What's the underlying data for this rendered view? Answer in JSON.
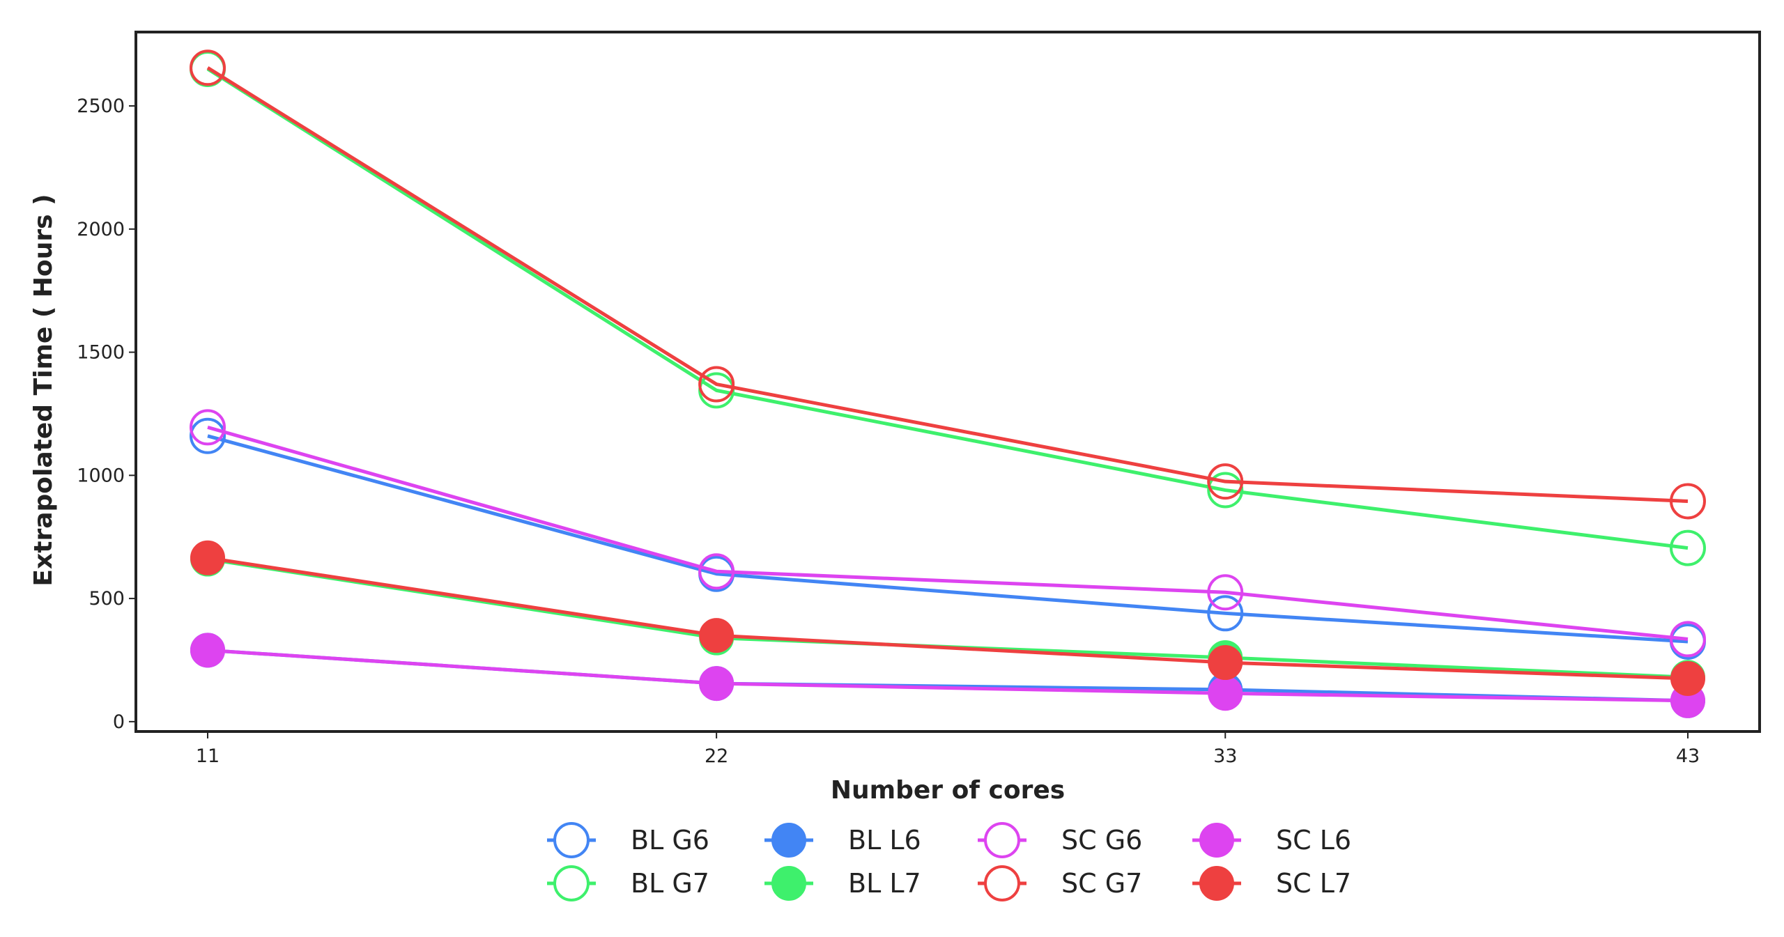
{
  "chart_data": {
    "type": "line",
    "title": "",
    "xlabel": "Number of cores",
    "ylabel": "Extrapolated Time ( Hours )",
    "x": [
      11,
      22,
      33,
      43
    ],
    "x_tick_labels": [
      "11",
      "22",
      "33",
      "43"
    ],
    "y_ticks": [
      0,
      500,
      1000,
      1500,
      2000,
      2500
    ],
    "ylim": [
      -40,
      2800
    ],
    "grid": false,
    "legend_position": "bottom-center",
    "legend_columns": 4,
    "series": [
      {
        "name": "BL G6",
        "color": "#4285f4",
        "marker": "hollow-circle",
        "values": [
          1160,
          600,
          440,
          325
        ]
      },
      {
        "name": "BL G7",
        "color": "#3ef06c",
        "marker": "hollow-circle",
        "values": [
          2650,
          1345,
          940,
          705
        ]
      },
      {
        "name": "BL L6",
        "color": "#4285f4",
        "marker": "filled-circle",
        "values": [
          290,
          155,
          130,
          85
        ]
      },
      {
        "name": "BL L7",
        "color": "#3ef06c",
        "marker": "filled-circle",
        "values": [
          660,
          340,
          260,
          180
        ]
      },
      {
        "name": "SC G6",
        "color": "#dd44f0",
        "marker": "hollow-circle",
        "values": [
          1195,
          610,
          525,
          335
        ]
      },
      {
        "name": "SC G7",
        "color": "#ee4040",
        "marker": "hollow-circle",
        "values": [
          2655,
          1370,
          975,
          895
        ]
      },
      {
        "name": "SC L6",
        "color": "#dd44f0",
        "marker": "filled-circle",
        "values": [
          290,
          155,
          115,
          85
        ]
      },
      {
        "name": "SC L7",
        "color": "#ee4040",
        "marker": "filled-circle",
        "values": [
          665,
          350,
          240,
          175
        ]
      }
    ]
  }
}
